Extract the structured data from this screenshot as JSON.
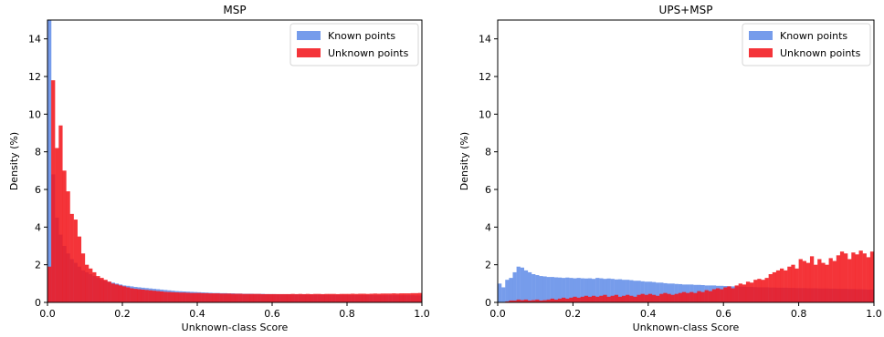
{
  "chart_data": [
    {
      "type": "histogram",
      "title": "MSP",
      "xlabel": "Unknown-class Score",
      "ylabel": "Density (%)",
      "xlim": [
        0.0,
        1.0
      ],
      "ylim": [
        0,
        15
      ],
      "xticks": [
        "0.0",
        "0.2",
        "0.4",
        "0.6",
        "0.8",
        "1.0"
      ],
      "yticks": [
        "0",
        "2",
        "4",
        "6",
        "8",
        "10",
        "12",
        "14"
      ],
      "legend_position": "top-right",
      "bin_width": 0.01,
      "series": [
        {
          "name": "Known points",
          "color": "#6f97ea",
          "values": [
            15.0,
            6.8,
            4.5,
            3.6,
            3.0,
            2.6,
            2.3,
            2.1,
            1.9,
            1.7,
            1.6,
            1.5,
            1.4,
            1.3,
            1.2,
            1.15,
            1.1,
            1.05,
            1.0,
            0.95,
            0.9,
            0.88,
            0.85,
            0.82,
            0.8,
            0.78,
            0.76,
            0.74,
            0.72,
            0.7,
            0.68,
            0.66,
            0.64,
            0.62,
            0.6,
            0.59,
            0.58,
            0.57,
            0.56,
            0.55,
            0.54,
            0.53,
            0.52,
            0.51,
            0.5,
            0.5,
            0.49,
            0.49,
            0.48,
            0.48,
            0.47,
            0.47,
            0.46,
            0.46,
            0.46,
            0.45,
            0.45,
            0.45,
            0.44,
            0.44,
            0.44,
            0.43,
            0.43,
            0.43,
            0.43,
            0.42,
            0.42,
            0.42,
            0.42,
            0.41,
            0.41,
            0.41,
            0.41,
            0.41,
            0.4,
            0.4,
            0.4,
            0.4,
            0.4,
            0.4,
            0.39,
            0.39,
            0.39,
            0.39,
            0.39,
            0.39,
            0.39,
            0.38,
            0.38,
            0.38,
            0.38,
            0.38,
            0.38,
            0.38,
            0.38,
            0.38,
            0.38,
            0.38,
            0.37,
            0.37
          ]
        },
        {
          "name": "Unknown points",
          "color": "#f2161c",
          "values": [
            1.9,
            11.8,
            8.2,
            9.4,
            7.0,
            5.9,
            4.7,
            4.4,
            3.5,
            2.6,
            2.0,
            1.8,
            1.6,
            1.4,
            1.3,
            1.2,
            1.1,
            1.0,
            0.95,
            0.9,
            0.85,
            0.8,
            0.75,
            0.72,
            0.7,
            0.68,
            0.66,
            0.64,
            0.62,
            0.6,
            0.58,
            0.56,
            0.55,
            0.54,
            0.53,
            0.52,
            0.52,
            0.51,
            0.5,
            0.5,
            0.5,
            0.49,
            0.49,
            0.48,
            0.48,
            0.48,
            0.47,
            0.47,
            0.47,
            0.46,
            0.46,
            0.46,
            0.45,
            0.45,
            0.45,
            0.45,
            0.45,
            0.44,
            0.44,
            0.44,
            0.44,
            0.44,
            0.44,
            0.44,
            0.44,
            0.45,
            0.44,
            0.45,
            0.44,
            0.45,
            0.44,
            0.45,
            0.45,
            0.44,
            0.45,
            0.45,
            0.45,
            0.44,
            0.45,
            0.45,
            0.45,
            0.46,
            0.45,
            0.46,
            0.46,
            0.45,
            0.46,
            0.47,
            0.46,
            0.47,
            0.47,
            0.47,
            0.48,
            0.47,
            0.48,
            0.48,
            0.48,
            0.49,
            0.49,
            0.5
          ]
        }
      ]
    },
    {
      "type": "histogram",
      "title": "UPS+MSP",
      "xlabel": "Unknown-class Score",
      "ylabel": "Density (%)",
      "xlim": [
        0.0,
        1.0
      ],
      "ylim": [
        0,
        15
      ],
      "xticks": [
        "0.0",
        "0.2",
        "0.4",
        "0.6",
        "0.8",
        "1.0"
      ],
      "yticks": [
        "0",
        "2",
        "4",
        "6",
        "8",
        "10",
        "12",
        "14"
      ],
      "legend_position": "top-right",
      "bin_width": 0.01,
      "series": [
        {
          "name": "Known points",
          "color": "#6f97ea",
          "values": [
            1.0,
            0.8,
            1.2,
            1.3,
            1.6,
            1.9,
            1.85,
            1.7,
            1.6,
            1.5,
            1.45,
            1.4,
            1.38,
            1.35,
            1.35,
            1.33,
            1.32,
            1.3,
            1.32,
            1.3,
            1.28,
            1.3,
            1.28,
            1.27,
            1.28,
            1.25,
            1.3,
            1.28,
            1.25,
            1.27,
            1.25,
            1.22,
            1.23,
            1.2,
            1.2,
            1.18,
            1.15,
            1.15,
            1.12,
            1.1,
            1.1,
            1.08,
            1.05,
            1.05,
            1.02,
            1.0,
            1.0,
            0.98,
            0.97,
            0.95,
            0.95,
            0.95,
            0.93,
            0.93,
            0.92,
            0.9,
            0.9,
            0.9,
            0.88,
            0.88,
            0.87,
            0.86,
            0.85,
            0.85,
            0.84,
            0.83,
            0.82,
            0.82,
            0.81,
            0.8,
            0.8,
            0.8,
            0.79,
            0.79,
            0.78,
            0.78,
            0.78,
            0.77,
            0.77,
            0.76,
            0.76,
            0.76,
            0.75,
            0.75,
            0.75,
            0.74,
            0.74,
            0.74,
            0.73,
            0.73,
            0.72,
            0.72,
            0.72,
            0.71,
            0.71,
            0.7,
            0.7,
            0.69,
            0.68,
            0.68
          ]
        },
        {
          "name": "Unknown points",
          "color": "#f2161c",
          "values": [
            0.0,
            0.0,
            0.05,
            0.1,
            0.1,
            0.15,
            0.12,
            0.15,
            0.1,
            0.12,
            0.15,
            0.1,
            0.12,
            0.15,
            0.2,
            0.15,
            0.2,
            0.25,
            0.2,
            0.25,
            0.3,
            0.25,
            0.3,
            0.35,
            0.3,
            0.35,
            0.3,
            0.35,
            0.4,
            0.3,
            0.35,
            0.4,
            0.3,
            0.35,
            0.4,
            0.35,
            0.3,
            0.4,
            0.45,
            0.4,
            0.45,
            0.4,
            0.35,
            0.45,
            0.5,
            0.45,
            0.4,
            0.45,
            0.5,
            0.55,
            0.5,
            0.55,
            0.5,
            0.6,
            0.55,
            0.65,
            0.6,
            0.7,
            0.75,
            0.7,
            0.8,
            0.85,
            0.75,
            0.9,
            1.0,
            0.95,
            1.1,
            1.05,
            1.2,
            1.25,
            1.2,
            1.3,
            1.5,
            1.6,
            1.7,
            1.8,
            1.7,
            1.9,
            2.0,
            1.8,
            2.3,
            2.2,
            2.1,
            2.45,
            2.0,
            2.3,
            2.1,
            2.0,
            2.35,
            2.2,
            2.5,
            2.7,
            2.6,
            2.3,
            2.65,
            2.55,
            2.75,
            2.6,
            2.4,
            2.7
          ]
        }
      ]
    }
  ]
}
